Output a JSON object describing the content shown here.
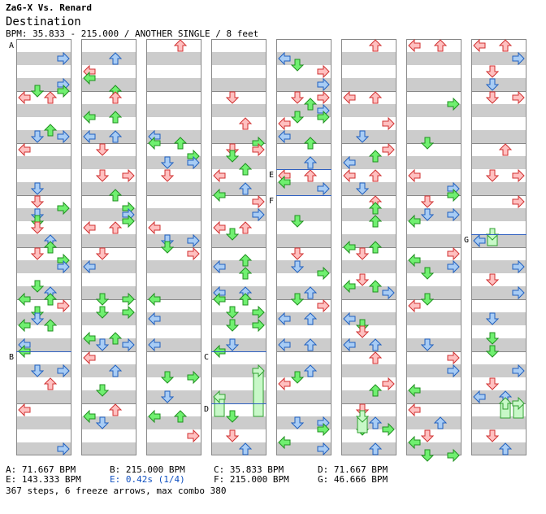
{
  "header": {
    "title": "ZaG-X Vs. Renard",
    "song": "Destination",
    "info": "BPM: 35.833 - 215.000 / ANOTHER SINGLE / 8 feet"
  },
  "markers": [
    "A",
    "B",
    "C",
    "D",
    "E",
    "F",
    "G"
  ],
  "legend": {
    "A": "A: 71.667 BPM",
    "B": "B: 215.000 BPM",
    "C": "C: 35.833 BPM",
    "D": "D: 71.667 BPM",
    "E": "E: 143.333 BPM",
    "E_stop": "E: 0.42s (1/4)",
    "F": "F: 215.000 BPM",
    "G": "G: 46.666 BPM"
  },
  "footer": "367 steps, 6 freeze arrows, max combo 380",
  "colors": {
    "background": "#ffffff",
    "stripe": "#cccccc",
    "arrow_red_fill": "#ffc0c0",
    "arrow_red_stroke": "#d03030",
    "arrow_blue_fill": "#a8ccf4",
    "arrow_blue_stroke": "#2060c0",
    "arrow_green_fill": "#70f070",
    "arrow_green_stroke": "#209020",
    "freeze_fill": "#c8f8c8",
    "freeze_stroke": "#30a030",
    "bpm_line": "#3060c0",
    "stop_text": "#1050c0"
  }
}
